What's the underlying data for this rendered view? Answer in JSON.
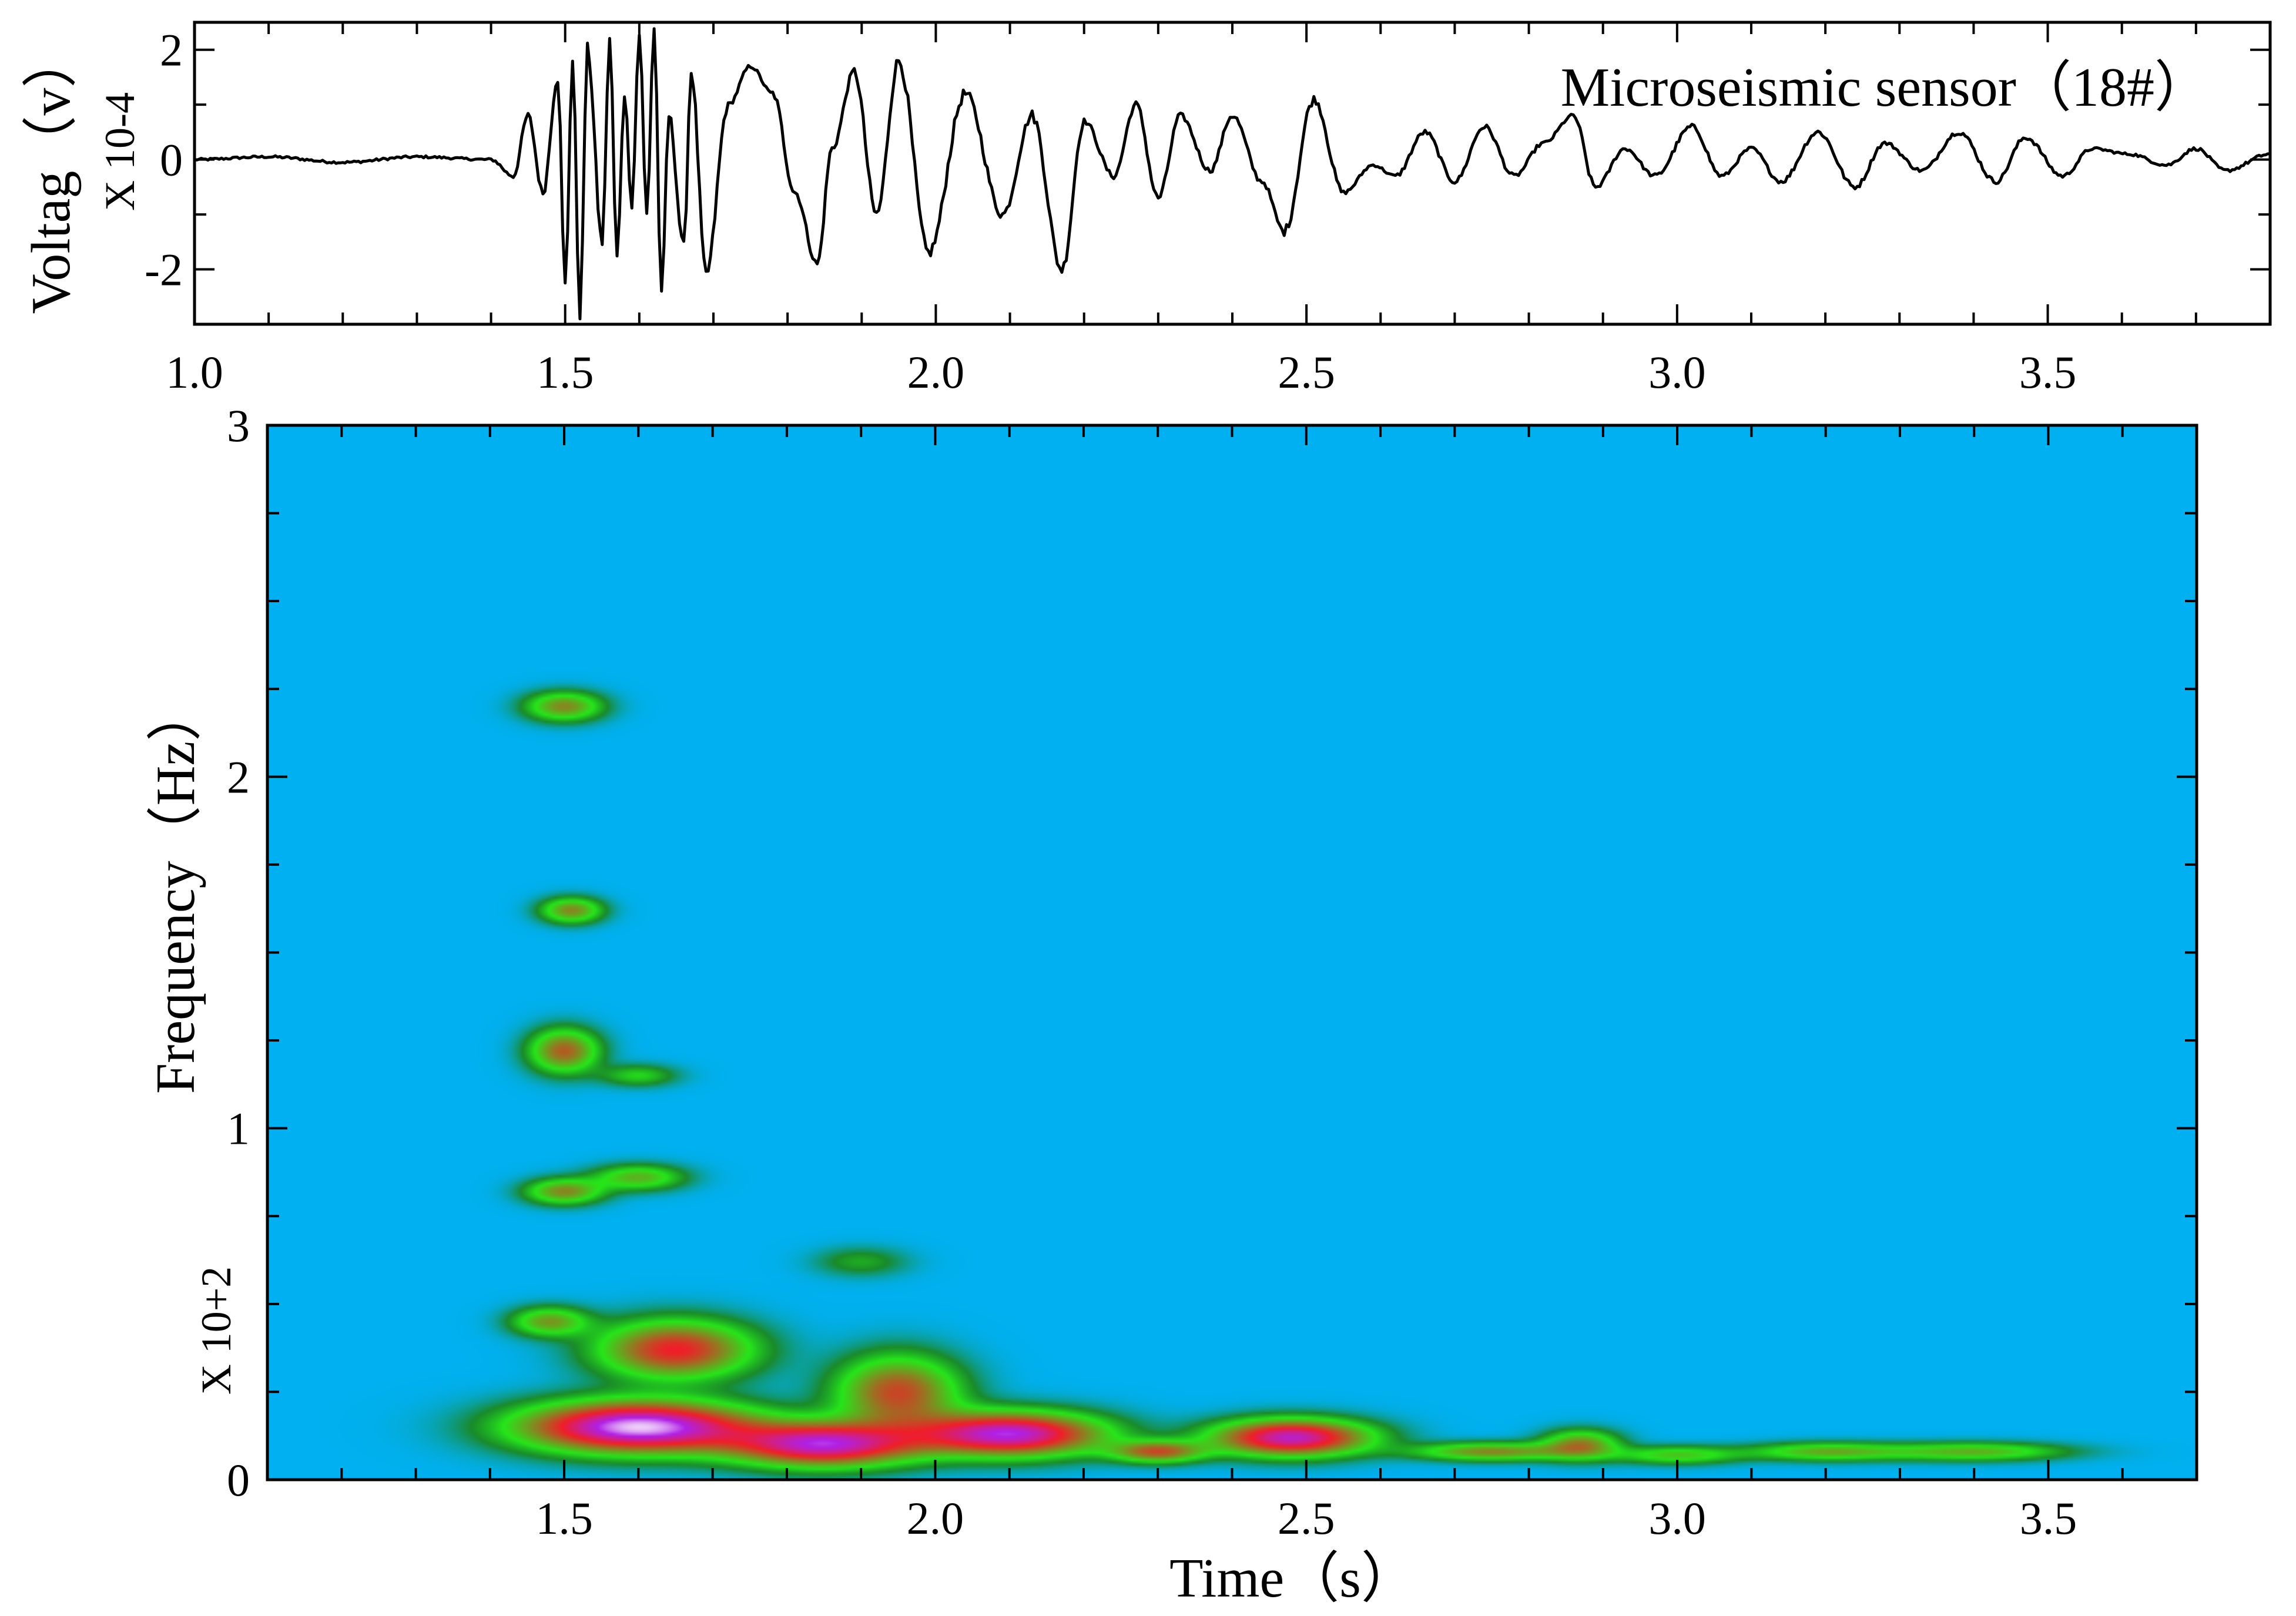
{
  "chart_data": [
    {
      "type": "line",
      "title": "Microseismic sensor（18#）",
      "xlabel": "",
      "ylabel": "Voltag（v）",
      "y_multiplier": "X 10-4",
      "xlim": [
        1.0,
        3.8
      ],
      "ylim": [
        -3,
        2.5
      ],
      "x_ticks": [
        1.0,
        1.5,
        2.0,
        2.5,
        3.0,
        3.5
      ],
      "x_tick_labels": [
        "1.0",
        "1.5",
        "2.0",
        "2.5",
        "3.0",
        "3.5"
      ],
      "y_ticks": [
        -2,
        0,
        2
      ],
      "y_tick_labels": [
        "-2",
        "0",
        "2"
      ],
      "series": [
        {
          "name": "voltage",
          "x": [
            1.0,
            1.1,
            1.2,
            1.3,
            1.4,
            1.43,
            1.45,
            1.47,
            1.49,
            1.5,
            1.51,
            1.52,
            1.53,
            1.55,
            1.56,
            1.57,
            1.58,
            1.59,
            1.6,
            1.61,
            1.62,
            1.63,
            1.64,
            1.66,
            1.67,
            1.69,
            1.72,
            1.75,
            1.78,
            1.81,
            1.84,
            1.86,
            1.89,
            1.92,
            1.95,
            1.99,
            2.04,
            2.09,
            2.13,
            2.17,
            2.2,
            2.24,
            2.27,
            2.3,
            2.33,
            2.37,
            2.4,
            2.44,
            2.47,
            2.51,
            2.55,
            2.59,
            2.62,
            2.66,
            2.7,
            2.74,
            2.78,
            2.82,
            2.86,
            2.89,
            2.93,
            2.97,
            3.02,
            3.06,
            3.1,
            3.14,
            3.19,
            3.24,
            3.28,
            3.33,
            3.38,
            3.43,
            3.47,
            3.52,
            3.56,
            3.61,
            3.66,
            3.7,
            3.74,
            3.8
          ],
          "values": [
            0.0,
            0.05,
            -0.05,
            0.05,
            0.0,
            -0.3,
            0.8,
            -0.6,
            1.5,
            -2.3,
            1.8,
            -2.8,
            2.0,
            -1.5,
            2.2,
            -1.8,
            1.2,
            -0.8,
            2.3,
            -1.0,
            2.4,
            -2.5,
            0.8,
            -1.6,
            1.6,
            -2.1,
            1.0,
            1.7,
            1.2,
            -0.6,
            -1.9,
            0.2,
            1.6,
            -1.0,
            1.8,
            -1.7,
            1.2,
            -1.0,
            0.8,
            -2.0,
            0.7,
            -0.3,
            1.0,
            -0.7,
            0.8,
            -0.2,
            0.8,
            -0.4,
            -1.3,
            1.1,
            -0.6,
            -0.1,
            -0.3,
            0.5,
            -0.4,
            0.6,
            -0.3,
            0.3,
            0.8,
            -0.5,
            0.2,
            -0.3,
            0.6,
            -0.3,
            0.2,
            -0.4,
            0.5,
            -0.5,
            0.3,
            -0.2,
            0.5,
            -0.4,
            0.4,
            -0.3,
            0.2,
            0.1,
            -0.1,
            0.2,
            -0.2,
            0.1
          ]
        }
      ]
    },
    {
      "type": "heatmap",
      "title": "",
      "xlabel": "Time（s）",
      "ylabel": "Frequency（Hz）",
      "y_multiplier": "X 10+2",
      "xlim": [
        1.1,
        3.7
      ],
      "ylim": [
        0,
        3
      ],
      "x_ticks": [
        1.5,
        2.0,
        2.5,
        3.0,
        3.5
      ],
      "x_tick_labels": [
        "1.5",
        "2.0",
        "2.5",
        "3.0",
        "3.5"
      ],
      "y_ticks": [
        0,
        1,
        2,
        3
      ],
      "y_tick_labels": [
        "0",
        "1",
        "2",
        "3"
      ],
      "colormap": [
        "#00b0f0",
        "#1a8a2a",
        "#26e61a",
        "#f01e28",
        "#b020e6",
        "#ffffff"
      ],
      "background_color": "#00b0f0",
      "blobs": [
        {
          "t": 1.5,
          "f": 2.2,
          "dt": 0.05,
          "df": 0.04,
          "intensity": 1.0
        },
        {
          "t": 1.51,
          "f": 1.62,
          "dt": 0.04,
          "df": 0.035,
          "intensity": 1.0
        },
        {
          "t": 1.5,
          "f": 1.22,
          "dt": 0.045,
          "df": 0.06,
          "intensity": 1.2
        },
        {
          "t": 1.6,
          "f": 1.15,
          "dt": 0.05,
          "df": 0.03,
          "intensity": 0.5
        },
        {
          "t": 1.5,
          "f": 0.82,
          "dt": 0.05,
          "df": 0.035,
          "intensity": 1.0
        },
        {
          "t": 1.6,
          "f": 0.86,
          "dt": 0.06,
          "df": 0.035,
          "intensity": 0.8
        },
        {
          "t": 1.48,
          "f": 0.45,
          "dt": 0.05,
          "df": 0.04,
          "intensity": 0.9
        },
        {
          "t": 1.65,
          "f": 0.37,
          "dt": 0.1,
          "df": 0.08,
          "intensity": 1.5
        },
        {
          "t": 1.6,
          "f": 0.15,
          "dt": 0.15,
          "df": 0.07,
          "intensity": 2.4
        },
        {
          "t": 1.85,
          "f": 0.1,
          "dt": 0.12,
          "df": 0.06,
          "intensity": 2.0
        },
        {
          "t": 1.95,
          "f": 0.25,
          "dt": 0.08,
          "df": 0.1,
          "intensity": 1.3
        },
        {
          "t": 2.1,
          "f": 0.13,
          "dt": 0.12,
          "df": 0.06,
          "intensity": 2.1
        },
        {
          "t": 2.3,
          "f": 0.08,
          "dt": 0.06,
          "df": 0.03,
          "intensity": 1.2
        },
        {
          "t": 2.48,
          "f": 0.12,
          "dt": 0.1,
          "df": 0.05,
          "intensity": 2.0
        },
        {
          "t": 2.75,
          "f": 0.08,
          "dt": 0.1,
          "df": 0.025,
          "intensity": 1.0
        },
        {
          "t": 2.87,
          "f": 0.1,
          "dt": 0.05,
          "df": 0.04,
          "intensity": 1.0
        },
        {
          "t": 3.0,
          "f": 0.07,
          "dt": 0.08,
          "df": 0.025,
          "intensity": 0.7
        },
        {
          "t": 3.2,
          "f": 0.08,
          "dt": 0.1,
          "df": 0.025,
          "intensity": 0.8
        },
        {
          "t": 3.4,
          "f": 0.08,
          "dt": 0.12,
          "df": 0.025,
          "intensity": 0.8
        },
        {
          "t": 1.9,
          "f": 0.62,
          "dt": 0.06,
          "df": 0.04,
          "intensity": 0.35
        }
      ]
    }
  ]
}
